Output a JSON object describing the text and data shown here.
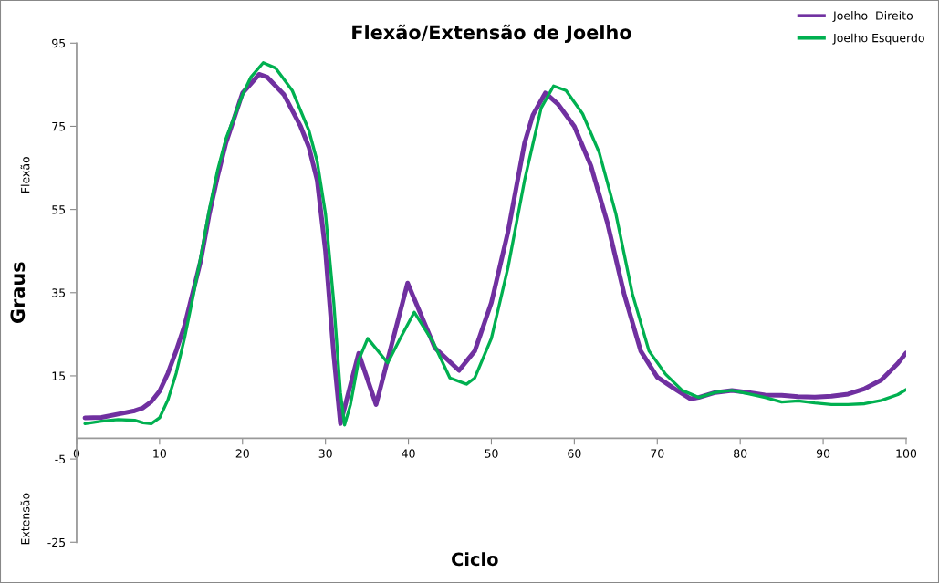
{
  "chart_data": {
    "type": "line",
    "title": "Flexão/Extensão de Joelho",
    "xlabel": "Ciclo",
    "ylabel": "Graus",
    "annotations": [
      "Flexão",
      "Extensão"
    ],
    "xlim": [
      0,
      100
    ],
    "xticks": [
      0,
      10,
      20,
      30,
      40,
      50,
      60,
      70,
      80,
      90,
      100
    ],
    "ylim": [
      -25,
      95
    ],
    "yticks": [
      -25,
      -5,
      15,
      35,
      55,
      75,
      95
    ],
    "grid": false,
    "legend": "top right",
    "marker": "none",
    "line_style": "solid",
    "series": [
      {
        "name": "Joelho  Direito",
        "color": "#7030a0",
        "x": [
          1,
          3,
          5,
          7,
          8,
          9,
          10,
          11,
          12,
          13,
          14,
          15,
          16,
          17,
          18,
          20,
          22,
          23,
          25,
          27,
          28,
          29,
          30,
          31,
          31.8,
          34,
          36.1,
          39.9,
          43.2,
          46.1,
          48,
          50,
          52,
          54,
          55,
          56.5,
          58,
          60,
          62,
          64,
          66,
          68,
          70,
          72,
          74,
          75,
          77,
          79,
          81,
          83,
          85,
          87,
          89,
          91,
          93,
          95,
          97,
          99,
          100
        ],
        "values": [
          4.9,
          5,
          5.8,
          6.6,
          7.3,
          8.8,
          11.3,
          15.6,
          21,
          27,
          35,
          43,
          54,
          63,
          71,
          83,
          87.5,
          86.8,
          82.6,
          75,
          70,
          62,
          45,
          20,
          3.5,
          20.4,
          8.1,
          37.3,
          21.7,
          16.3,
          21,
          32.6,
          49.6,
          71,
          77.7,
          83,
          80.4,
          75,
          65.5,
          51.7,
          34.7,
          21,
          14.7,
          12,
          9.5,
          9.8,
          11,
          11.5,
          11,
          10.4,
          10.3,
          10,
          9.9,
          10.1,
          10.6,
          11.9,
          14,
          18,
          20.5
        ]
      },
      {
        "name": "Joelho Esquerdo",
        "color": "#00b050",
        "x": [
          1,
          3,
          5,
          7,
          8,
          9,
          10,
          11,
          12,
          13,
          14,
          15,
          16,
          17,
          18,
          20,
          21,
          22.5,
          24,
          26,
          28,
          29,
          30,
          31,
          31.8,
          32.3,
          33,
          34,
          35.1,
          37.5,
          39,
          40.7,
          43,
          45,
          47,
          48,
          50,
          52,
          54,
          56,
          57.5,
          59,
          61,
          63,
          65,
          67,
          69,
          71,
          73,
          75,
          77,
          79,
          81,
          83,
          85,
          87,
          89,
          91,
          93,
          95,
          97,
          99,
          100
        ],
        "values": [
          3.5,
          4.1,
          4.5,
          4.3,
          3.7,
          3.5,
          4.9,
          9.2,
          15.6,
          24,
          33.7,
          44,
          55,
          64.5,
          72,
          82.6,
          86.8,
          90.3,
          89,
          83.6,
          74,
          66.6,
          54,
          32.6,
          11,
          3.2,
          8,
          18.8,
          24,
          18.1,
          24,
          30.3,
          23,
          14.5,
          13,
          14.5,
          24,
          41,
          62,
          79.4,
          84.7,
          83.6,
          78,
          68.7,
          54,
          34.7,
          21,
          15.4,
          11.5,
          9.8,
          11,
          11.5,
          10.7,
          9.8,
          8.7,
          9,
          8.5,
          8.1,
          8.1,
          8.3,
          9.1,
          10.5,
          11.7
        ]
      }
    ]
  }
}
